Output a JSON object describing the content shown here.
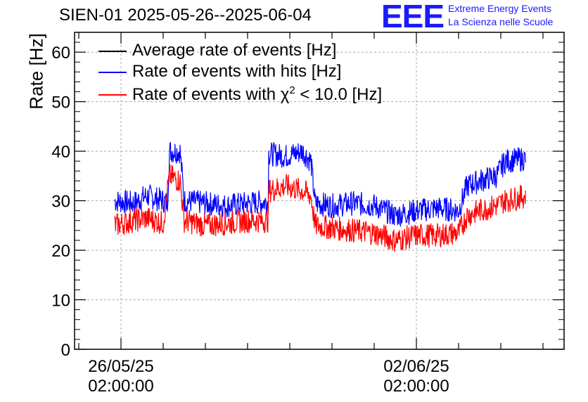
{
  "chart_data": {
    "type": "line",
    "title": "SIEN-01 2025-05-26--2025-06-04",
    "ylabel": "Rate [Hz]",
    "ylim": [
      0,
      64
    ],
    "yticks": [
      0,
      10,
      20,
      30,
      40,
      50,
      60
    ],
    "xticks": [
      {
        "x": 0,
        "line1": "26/05/25",
        "line2": "02:00:00"
      },
      {
        "x": 7,
        "line1": "02/06/25",
        "line2": "02:00:00"
      }
    ],
    "xlim": [
      -1.1,
      10.5
    ],
    "grid": true,
    "legend_placement": "top-left",
    "series": [
      {
        "name": "Average rate of events [Hz]",
        "color": "#000000",
        "points": []
      },
      {
        "name": "Rate of events with hits [Hz]",
        "color": "#0000ff",
        "points": [
          [
            -0.15,
            30
          ],
          [
            0.3,
            29.5
          ],
          [
            0.6,
            31
          ],
          [
            1.0,
            30
          ],
          [
            1.1,
            29.5
          ],
          [
            1.15,
            40
          ],
          [
            1.4,
            40
          ],
          [
            1.5,
            30
          ],
          [
            2.0,
            29.5
          ],
          [
            2.5,
            29
          ],
          [
            3.0,
            29.5
          ],
          [
            3.5,
            29.8
          ],
          [
            3.5,
            39.5
          ],
          [
            3.9,
            39
          ],
          [
            4.3,
            40
          ],
          [
            4.5,
            38
          ],
          [
            4.6,
            29.5
          ],
          [
            5.0,
            29
          ],
          [
            5.5,
            29.5
          ],
          [
            6.0,
            29
          ],
          [
            6.5,
            27
          ],
          [
            7.0,
            28
          ],
          [
            7.5,
            28.5
          ],
          [
            8.0,
            28
          ],
          [
            8.2,
            33
          ],
          [
            8.5,
            34
          ],
          [
            8.9,
            35
          ],
          [
            9.1,
            38
          ],
          [
            9.6,
            38.5
          ]
        ]
      },
      {
        "name": "Rate of events with χ² < 10.0 [Hz]",
        "color": "#ff0000",
        "points": [
          [
            -0.15,
            25
          ],
          [
            0.3,
            26
          ],
          [
            0.6,
            26.5
          ],
          [
            1.0,
            25.5
          ],
          [
            1.15,
            35
          ],
          [
            1.4,
            34
          ],
          [
            1.5,
            26
          ],
          [
            2.0,
            25
          ],
          [
            2.5,
            25.5
          ],
          [
            3.0,
            26
          ],
          [
            3.5,
            26
          ],
          [
            3.5,
            32
          ],
          [
            3.9,
            33
          ],
          [
            4.3,
            32
          ],
          [
            4.5,
            31
          ],
          [
            4.6,
            25
          ],
          [
            5.0,
            24.5
          ],
          [
            5.5,
            24
          ],
          [
            6.0,
            23.5
          ],
          [
            6.5,
            22
          ],
          [
            7.0,
            23
          ],
          [
            7.5,
            23
          ],
          [
            8.0,
            23.5
          ],
          [
            8.2,
            27
          ],
          [
            8.5,
            28
          ],
          [
            8.9,
            29
          ],
          [
            9.1,
            30
          ],
          [
            9.6,
            31
          ]
        ]
      }
    ]
  },
  "logo": {
    "mark": "EEE",
    "line1": "Extreme Energy Events",
    "line2": "La Scienza nelle Scuole"
  },
  "legend": {
    "avg_label": "Average rate of events [Hz]",
    "hits_label": "Rate of events with hits [Hz]",
    "chi_label_prefix": "Rate of events with ",
    "chi_symbol": "χ",
    "chi_sup": "2",
    "chi_label_suffix": " < 10.0 [Hz]"
  }
}
